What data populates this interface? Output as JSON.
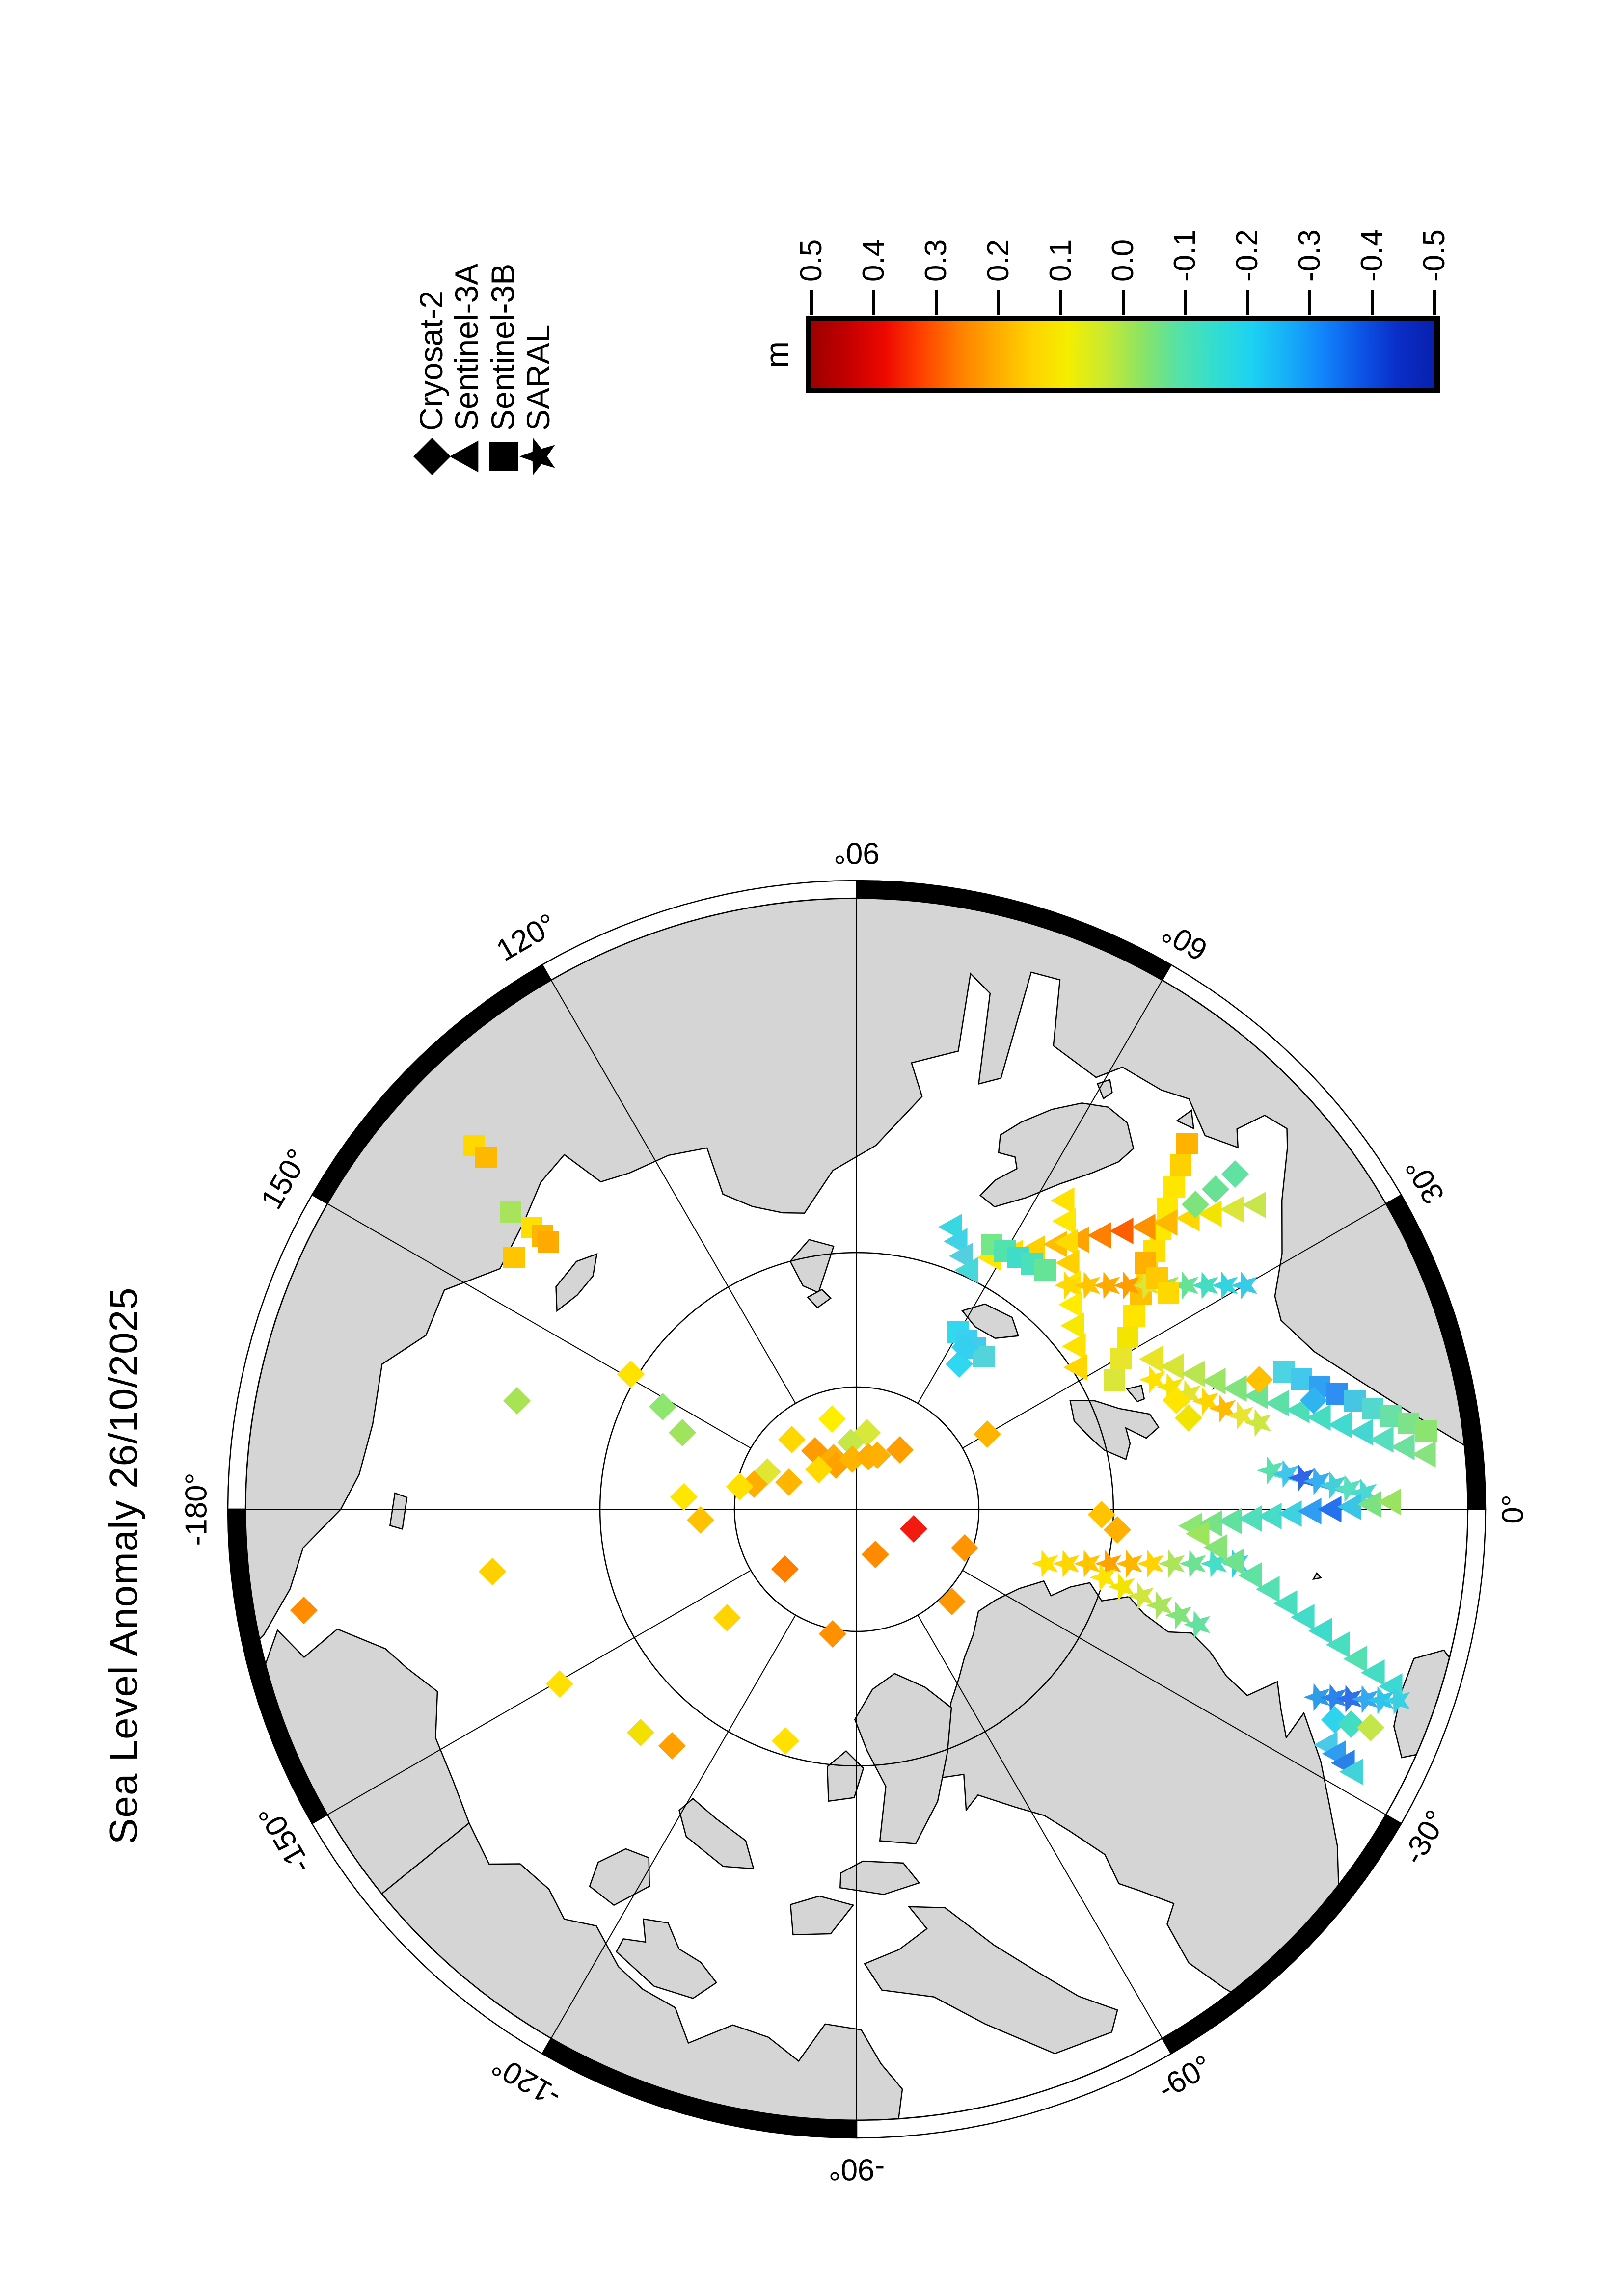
{
  "title": "Sea Level Anomaly 26/10/2025",
  "legend": {
    "items": [
      {
        "label": "Cryosat-2",
        "symbol": "diamond"
      },
      {
        "label": "Sentinel-3A",
        "symbol": "triangle"
      },
      {
        "label": "Sentinel-3B",
        "symbol": "square"
      },
      {
        "label": "SARAL",
        "symbol": "star"
      }
    ]
  },
  "colorbar": {
    "unit": "m",
    "min": -0.5,
    "max": 0.5,
    "tick_labels": [
      "0.5",
      "0.4",
      "0.3",
      "0.2",
      "0.1",
      "0.0",
      "-0.1",
      "-0.2",
      "-0.3",
      "-0.4",
      "-0.5"
    ],
    "gradient": [
      "#9e0000",
      "#c40000",
      "#ee0800",
      "#ff4000",
      "#ff7c00",
      "#ffaa00",
      "#ffd200",
      "#f4ee00",
      "#c8ea30",
      "#8ce462",
      "#55e2a6",
      "#32ded0",
      "#1dd2f2",
      "#17aef8",
      "#1182fa",
      "#0c54e6",
      "#0a2ec8",
      "#0820ae"
    ]
  },
  "map": {
    "meridian_labels": [
      {
        "lon": 0,
        "text": "0°"
      },
      {
        "lon": 30,
        "text": "30°"
      },
      {
        "lon": 60,
        "text": "60°"
      },
      {
        "lon": 90,
        "text": "90°"
      },
      {
        "lon": 120,
        "text": "120°"
      },
      {
        "lon": 150,
        "text": "150°"
      },
      {
        "lon": 180,
        "text": "-180°"
      },
      {
        "lon": -150,
        "text": "-150°"
      },
      {
        "lon": -120,
        "text": "-120°"
      },
      {
        "lon": -90,
        "text": "-90°"
      },
      {
        "lon": -60,
        "text": "-60°"
      },
      {
        "lon": -30,
        "text": "-30°"
      }
    ],
    "latitude_circles_rho": [
      0.2,
      0.42
    ],
    "frame_black_segments": [
      [
        0,
        30
      ],
      [
        60,
        90
      ],
      [
        120,
        150
      ],
      [
        180,
        210
      ],
      [
        240,
        270
      ],
      [
        300,
        330
      ]
    ]
  },
  "chart_data": {
    "type": "scatter",
    "title": "Sea Level Anomaly 26/10/2025",
    "projection": "north-polar-stereographic",
    "value_unit": "m",
    "value_range": [
      -0.5,
      0.5
    ],
    "legend_position": "top-right",
    "tracks": [
      {
        "sat": "Sentinel-3B",
        "points": [
          [
            2348,
            2418,
            "#ffb300"
          ],
          [
            2304,
            2405,
            "#ffd000"
          ],
          [
            2260,
            2391,
            "#ffe600"
          ],
          [
            2216,
            2378,
            "#ffe800"
          ],
          [
            2173,
            2364,
            "#ffe800"
          ],
          [
            2129,
            2351,
            "#ffdf00"
          ],
          [
            2085,
            2337,
            "#ffd200"
          ],
          [
            2041,
            2324,
            "#ffc000"
          ],
          [
            1997,
            2310,
            "#ffe400"
          ],
          [
            1953,
            2297,
            "#f4e500"
          ],
          [
            1910,
            2283,
            "#e8e52a"
          ],
          [
            1866,
            2270,
            "#dbe63a"
          ]
        ]
      },
      {
        "sat": "Sentinel-3A",
        "points": [
          [
            2116,
            2020,
            "#ffe600"
          ],
          [
            2125,
            2065,
            "#ffdd00"
          ],
          [
            2134,
            2110,
            "#ffd000"
          ],
          [
            2143,
            2155,
            "#ffbc00"
          ],
          [
            2152,
            2200,
            "#ffa300"
          ],
          [
            2161,
            2245,
            "#ff8000"
          ],
          [
            2170,
            2290,
            "#ff5e00"
          ],
          [
            2178,
            2335,
            "#ff9000"
          ],
          [
            2187,
            2380,
            "#ffb800"
          ],
          [
            2196,
            2425,
            "#ffd600"
          ],
          [
            2205,
            2470,
            "#f2e400"
          ],
          [
            2214,
            2515,
            "#dce63a"
          ],
          [
            2223,
            2560,
            "#c6e64c"
          ]
        ]
      },
      {
        "sat": "Sentinel-3A",
        "points": [
          [
            2232,
            2170,
            "#ffe200"
          ],
          [
            2190,
            2173,
            "#ffe800"
          ],
          [
            2147,
            2177,
            "#ffda00"
          ],
          [
            2105,
            2180,
            "#ffd000"
          ],
          [
            2062,
            2183,
            "#ffe400"
          ],
          [
            2020,
            2186,
            "#ffec00"
          ],
          [
            1977,
            2190,
            "#f6e800"
          ],
          [
            1935,
            2193,
            "#ffe200"
          ],
          [
            1892,
            2196,
            "#ffd600"
          ]
        ]
      },
      {
        "sat": "SARAL",
        "points": [
          [
            2059,
            2177,
            "#ffd800"
          ],
          [
            2059,
            2217,
            "#ffc400"
          ],
          [
            2059,
            2257,
            "#ffaa00"
          ],
          [
            2059,
            2297,
            "#ff9c00"
          ],
          [
            2059,
            2337,
            "#dce63a"
          ],
          [
            2059,
            2377,
            "#9ce562"
          ],
          [
            2059,
            2417,
            "#66e296"
          ],
          [
            2059,
            2457,
            "#44ddc2"
          ],
          [
            2059,
            2497,
            "#34d4de"
          ],
          [
            2059,
            2537,
            "#38cbe8"
          ]
        ]
      },
      {
        "sat": "SARAL",
        "points": [
          [
            1492,
            2131,
            "#ffe000"
          ],
          [
            1492,
            2174,
            "#ffd600"
          ],
          [
            1492,
            2217,
            "#ffc600"
          ],
          [
            1492,
            2260,
            "#ffa200"
          ],
          [
            1492,
            2303,
            "#ffb600"
          ],
          [
            1492,
            2346,
            "#ffd200"
          ],
          [
            1492,
            2389,
            "#ace55a"
          ],
          [
            1492,
            2432,
            "#6ce292"
          ],
          [
            1492,
            2475,
            "#46dec6"
          ],
          [
            1492,
            2519,
            "#36cfe2"
          ]
        ]
      },
      {
        "sat": "Sentinel-3B",
        "points": [
          [
            2209,
            1040,
            "#a8e35c"
          ],
          [
            2177,
            1083,
            "#ffdf00"
          ],
          [
            2160,
            1105,
            "#ffb400"
          ],
          [
            2148,
            1117,
            "#ffaa00"
          ],
          [
            2116,
            1047,
            "#ffc600"
          ]
        ]
      },
      {
        "sat": "Sentinel-3A",
        "points": [
          [
            2178,
            1941,
            "#38d8e2"
          ],
          [
            2149,
            1952,
            "#40d2e6"
          ],
          [
            2119,
            1963,
            "#55cfe0"
          ],
          [
            2090,
            1974,
            "#48d8da"
          ]
        ]
      },
      {
        "sat": "Sentinel-3B",
        "points": [
          [
            1964,
            1951,
            "#32d8ee"
          ],
          [
            1947,
            1969,
            "#3cd0f0"
          ],
          [
            1931,
            1986,
            "#44caec"
          ],
          [
            1914,
            2004,
            "#52d4da"
          ]
        ]
      },
      {
        "sat": "Sentinel-3B",
        "points": [
          [
            2142,
            2020,
            "#74e786"
          ],
          [
            2129,
            2047,
            "#52e2ae"
          ],
          [
            2116,
            2074,
            "#40dcca"
          ],
          [
            2103,
            2102,
            "#4ae0bc"
          ],
          [
            2090,
            2129,
            "#66e496"
          ]
        ]
      },
      {
        "sat": "SARAL",
        "points": [
          [
            1682,
            2590,
            "#58e0ae"
          ],
          [
            1675,
            2622,
            "#40c6ec"
          ],
          [
            1667,
            2653,
            "#2f66e8"
          ],
          [
            1660,
            2685,
            "#36aef0"
          ],
          [
            1652,
            2717,
            "#44d0da"
          ],
          [
            1645,
            2748,
            "#58dfc0"
          ],
          [
            1637,
            2780,
            "#4ad8d0"
          ]
        ]
      },
      {
        "sat": "Sentinel-3A",
        "points": [
          [
            1569,
            2430,
            "#8ce672"
          ],
          [
            1574,
            2471,
            "#76e486"
          ],
          [
            1579,
            2511,
            "#60e29e"
          ],
          [
            1584,
            2552,
            "#50dfba"
          ],
          [
            1589,
            2592,
            "#46dcc8"
          ],
          [
            1594,
            2633,
            "#3ed2e0"
          ],
          [
            1599,
            2673,
            "#2f9ef2"
          ],
          [
            1603,
            2714,
            "#2672ee"
          ],
          [
            1608,
            2754,
            "#3ac4e6"
          ],
          [
            1613,
            2795,
            "#7ce180"
          ],
          [
            1618,
            2835,
            "#9ae360"
          ]
        ]
      },
      {
        "sat": "Sentinel-3A",
        "points": [
          [
            1553,
            2445,
            "#9ce55c"
          ],
          [
            1525,
            2481,
            "#86e476"
          ],
          [
            1496,
            2516,
            "#70e28e"
          ],
          [
            1468,
            2552,
            "#60e2a2"
          ],
          [
            1440,
            2588,
            "#54e0b2"
          ],
          [
            1411,
            2624,
            "#4adebe"
          ],
          [
            1383,
            2659,
            "#42dcc8"
          ],
          [
            1355,
            2695,
            "#3edacc"
          ],
          [
            1327,
            2731,
            "#48dec0"
          ],
          [
            1298,
            2766,
            "#54e0b0"
          ],
          [
            1270,
            2802,
            "#46dcc4"
          ],
          [
            1242,
            2838,
            "#3cd8d2"
          ]
        ]
      },
      {
        "sat": "SARAL",
        "points": [
          [
            1220,
            2685,
            "#2f9ce8"
          ],
          [
            1219,
            2718,
            "#2b84ec"
          ],
          [
            1217,
            2750,
            "#2f70e8"
          ],
          [
            1216,
            2783,
            "#36a8f0"
          ],
          [
            1214,
            2815,
            "#2fc4ec"
          ],
          [
            1213,
            2848,
            "#3ad0e2"
          ]
        ]
      },
      {
        "sat": "Sentinel-3A",
        "points": [
          [
            1123,
            2706,
            "#48cae8"
          ],
          [
            1105,
            2723,
            "#2f9cf0"
          ],
          [
            1086,
            2741,
            "#2b80e8"
          ],
          [
            1068,
            2758,
            "#42d2da"
          ]
        ]
      },
      {
        "sat": "Sentinel-3B",
        "points": [
          [
            1883,
            2615,
            "#4cd4e2"
          ],
          [
            1868,
            2651,
            "#42c8ec"
          ],
          [
            1853,
            2688,
            "#2fa0f2"
          ],
          [
            1838,
            2724,
            "#2f8ef2"
          ],
          [
            1823,
            2760,
            "#46c6e2"
          ],
          [
            1808,
            2796,
            "#54d8ce"
          ],
          [
            1793,
            2833,
            "#68e0a6"
          ],
          [
            1778,
            2869,
            "#7ee28a"
          ],
          [
            1763,
            2905,
            "#8ce470"
          ]
        ]
      },
      {
        "sat": "Sentinel-3A",
        "points": [
          [
            1909,
            2350,
            "#eae426"
          ],
          [
            1894,
            2393,
            "#d6e538"
          ],
          [
            1879,
            2436,
            "#b8e550"
          ],
          [
            1864,
            2478,
            "#9ae466"
          ],
          [
            1849,
            2521,
            "#80e37c"
          ],
          [
            1834,
            2564,
            "#6ce292"
          ],
          [
            1819,
            2607,
            "#5ce0a6"
          ],
          [
            1805,
            2649,
            "#4edeb6"
          ],
          [
            1790,
            2692,
            "#46dcc2"
          ],
          [
            1775,
            2735,
            "#40dace"
          ],
          [
            1760,
            2778,
            "#46d6d2"
          ],
          [
            1745,
            2820,
            "#56debe"
          ],
          [
            1730,
            2863,
            "#6ee09e"
          ],
          [
            1715,
            2906,
            "#86e37e"
          ]
        ]
      },
      {
        "sat": "SARAL",
        "points": [
          [
            1867,
            2350,
            "#ffe200"
          ],
          [
            1852,
            2386,
            "#f6e400"
          ],
          [
            1838,
            2422,
            "#e4e42c"
          ],
          [
            1823,
            2458,
            "#ffd400"
          ],
          [
            1808,
            2493,
            "#ffbb00"
          ],
          [
            1794,
            2529,
            "#eae430"
          ],
          [
            1779,
            2565,
            "#cce642"
          ]
        ]
      },
      {
        "sat": "SARAL",
        "points": [
          [
            1464,
            2249,
            "#ffe400"
          ],
          [
            1445,
            2287,
            "#f2e300"
          ],
          [
            1426,
            2326,
            "#d0e63c"
          ],
          [
            1407,
            2364,
            "#a8e55c"
          ],
          [
            1387,
            2403,
            "#80e37c"
          ],
          [
            1368,
            2441,
            "#62e29e"
          ]
        ]
      },
      {
        "sat": "Sentinel-3B",
        "points": [
          [
            2105,
            2333,
            "#ffb000"
          ],
          [
            2074,
            2357,
            "#ffc800"
          ],
          [
            2043,
            2380,
            "#ffd800"
          ]
        ]
      },
      {
        "sat": "Sentinel-3B",
        "points": [
          [
            2344,
            966,
            "#ffd800"
          ],
          [
            2320,
            990,
            "#ffb800"
          ]
        ]
      }
    ],
    "cryosat_points": [
      [
        1787,
        1695,
        "#ffee00"
      ],
      [
        1759,
        1766,
        "#d8e838"
      ],
      [
        1739,
        1733,
        "#c6e748"
      ],
      [
        1722,
        1660,
        "#ff9b00"
      ],
      [
        1745,
        1613,
        "#ffd800"
      ],
      [
        1708,
        1698,
        "#ffae00"
      ],
      [
        1693,
        1703,
        "#ffa200"
      ],
      [
        1705,
        1736,
        "#ffb400"
      ],
      [
        1710,
        1769,
        "#ffab00"
      ],
      [
        1713,
        1787,
        "#ffb000"
      ],
      [
        1724,
        1833,
        "#ff9e00"
      ],
      [
        1684,
        1668,
        "#ffd900"
      ],
      [
        1679,
        1563,
        "#e0e632"
      ],
      [
        1654,
        1536,
        "#ffae00"
      ],
      [
        1649,
        1507,
        "#ffe000"
      ],
      [
        1658,
        1607,
        "#ffb600"
      ],
      [
        1628,
        1393,
        "#ffe600"
      ],
      [
        1581,
        1427,
        "#ffc200"
      ],
      [
        1563,
        1861,
        "#f31b10"
      ],
      [
        1511,
        1783,
        "#ff8a00"
      ],
      [
        1481,
        1599,
        "#ff7e00"
      ],
      [
        1524,
        1965,
        "#ff9400"
      ],
      [
        1415,
        1939,
        "#ff9800"
      ],
      [
        1382,
        1481,
        "#ffd400"
      ],
      [
        1349,
        1696,
        "#ff9000"
      ],
      [
        1756,
        2011,
        "#ffb500"
      ],
      [
        1812,
        1350,
        "#8de66e"
      ],
      [
        1759,
        1390,
        "#9fe45c"
      ],
      [
        1899,
        1954,
        "#2fd8f0"
      ],
      [
        1933,
        1966,
        "#35d0f0"
      ],
      [
        1397,
        619,
        "#ff8c00"
      ],
      [
        1247,
        1140,
        "#ffe000"
      ],
      [
        1824,
        1053,
        "#a8e354"
      ],
      [
        1878,
        1285,
        "#ffe300"
      ],
      [
        1148,
        1305,
        "#f4e000"
      ],
      [
        1121,
        1369,
        "#ff9f00"
      ],
      [
        1131,
        1600,
        "#ffe000"
      ],
      [
        1476,
        1003,
        "#ffd000"
      ],
      [
        2224,
        2435,
        "#7ee37c"
      ],
      [
        2255,
        2476,
        "#69e194"
      ],
      [
        2286,
        2516,
        "#5fe2a2"
      ],
      [
        1592,
        2244,
        "#ffc300"
      ],
      [
        1561,
        2276,
        "#ffb000"
      ],
      [
        1825,
        2396,
        "#ffe600"
      ],
      [
        1789,
        2421,
        "#f0e400"
      ],
      [
        1825,
        2676,
        "#2fb4f0"
      ],
      [
        1174,
        2719,
        "#2fd4ec"
      ],
      [
        1165,
        2752,
        "#43ddc4"
      ],
      [
        1158,
        2792,
        "#c4e64a"
      ],
      [
        1867,
        2565,
        "#ffc000"
      ]
    ]
  }
}
